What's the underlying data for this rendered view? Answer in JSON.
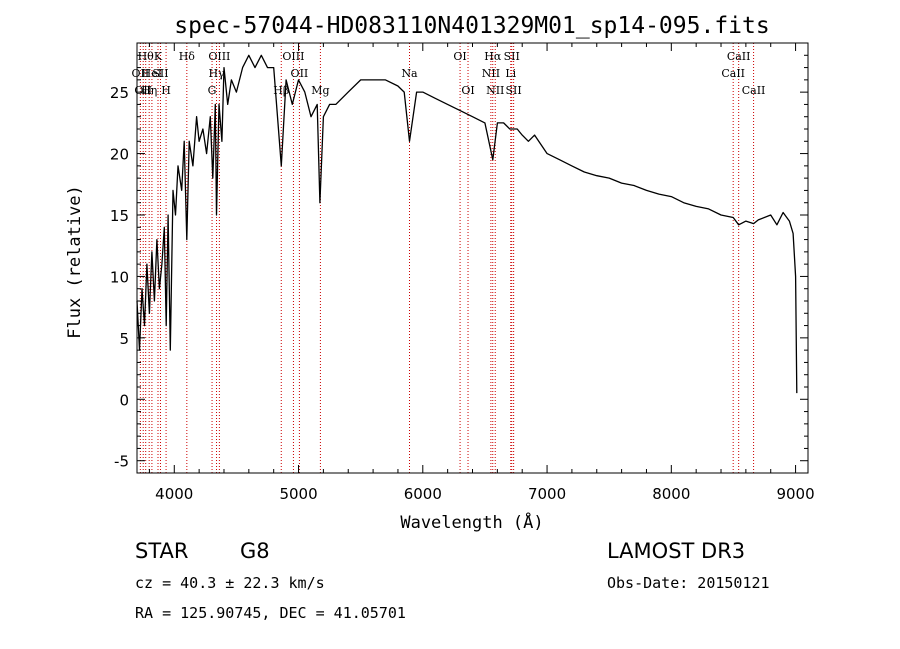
{
  "chart_data": {
    "type": "line",
    "title": "spec-57044-HD083110N401329M01_sp14-095.fits",
    "xlabel": "Wavelength (Å)",
    "ylabel": "Flux (relative)",
    "xlim": [
      3700,
      9100
    ],
    "ylim": [
      -6,
      29
    ],
    "xticks": [
      4000,
      5000,
      6000,
      7000,
      8000,
      9000
    ],
    "yticks": [
      -5,
      0,
      5,
      10,
      15,
      20,
      25
    ],
    "series": [
      {
        "name": "spectrum",
        "x": [
          3700,
          3720,
          3740,
          3760,
          3780,
          3800,
          3820,
          3840,
          3860,
          3880,
          3900,
          3920,
          3935,
          3950,
          3968,
          3990,
          4010,
          4030,
          4060,
          4080,
          4101,
          4120,
          4150,
          4180,
          4200,
          4230,
          4260,
          4290,
          4310,
          4330,
          4340,
          4360,
          4383,
          4400,
          4430,
          4460,
          4500,
          4550,
          4600,
          4650,
          4700,
          4750,
          4800,
          4861,
          4900,
          4950,
          5000,
          5050,
          5100,
          5150,
          5172,
          5200,
          5250,
          5300,
          5400,
          5500,
          5600,
          5700,
          5800,
          5850,
          5893,
          5950,
          6000,
          6100,
          6200,
          6300,
          6400,
          6500,
          6563,
          6600,
          6650,
          6700,
          6760,
          6800,
          6850,
          6900,
          7000,
          7100,
          7200,
          7300,
          7400,
          7500,
          7600,
          7700,
          7800,
          7900,
          8000,
          8100,
          8200,
          8300,
          8400,
          8498,
          8542,
          8600,
          8662,
          8700,
          8800,
          8850,
          8900,
          8950,
          8980,
          9000,
          9010
        ],
        "y": [
          8,
          4,
          9,
          6,
          11,
          7,
          12,
          8,
          13,
          9,
          11,
          14,
          6,
          15,
          4,
          17,
          15,
          19,
          17,
          21,
          13,
          21,
          19,
          23,
          21,
          22,
          20,
          23,
          18,
          24,
          15,
          24,
          21,
          27,
          24,
          26,
          25,
          27,
          28,
          27,
          28,
          27,
          27,
          19,
          26,
          24,
          26,
          25,
          23,
          24,
          16,
          23,
          24,
          24,
          25,
          26,
          26,
          26,
          25.5,
          25,
          21,
          25,
          25,
          24.5,
          24,
          23.5,
          23,
          22.5,
          19.5,
          22.5,
          22.5,
          22,
          22,
          21.5,
          21,
          21.5,
          20,
          19.5,
          19,
          18.5,
          18.2,
          18,
          17.6,
          17.4,
          17,
          16.7,
          16.5,
          16,
          15.7,
          15.5,
          15,
          14.8,
          14.2,
          14.5,
          14.3,
          14.6,
          15,
          14.2,
          15.2,
          14.5,
          13.5,
          10,
          0.5
        ]
      }
    ],
    "lines": [
      {
        "wl": 3727,
        "label": "OII",
        "row": 1
      },
      {
        "wl": 3750,
        "label": "OII",
        "row": 2
      },
      {
        "wl": 3770,
        "label": "Hθ",
        "row": 0
      },
      {
        "wl": 3798,
        "label": "Hη",
        "row": 2
      },
      {
        "wl": 3820,
        "label": "HeI",
        "row": 1
      },
      {
        "wl": 3869,
        "label": "K",
        "row": 0
      },
      {
        "wl": 3889,
        "label": "SII",
        "row": 1
      },
      {
        "wl": 3934,
        "label": "H",
        "row": 2
      },
      {
        "wl": 4101,
        "label": "Hδ",
        "row": 0
      },
      {
        "wl": 4304,
        "label": "G",
        "row": 2
      },
      {
        "wl": 4340,
        "label": "Hγ",
        "row": 1
      },
      {
        "wl": 4363,
        "label": "OIII",
        "row": 0
      },
      {
        "wl": 4861,
        "label": "Hβ",
        "row": 2
      },
      {
        "wl": 4959,
        "label": "OIII",
        "row": 0
      },
      {
        "wl": 5007,
        "label": "OII",
        "row": 1
      },
      {
        "wl": 5176,
        "label": "Mg",
        "row": 2
      },
      {
        "wl": 5893,
        "label": "Na",
        "row": 1
      },
      {
        "wl": 6300,
        "label": "OI",
        "row": 0
      },
      {
        "wl": 6364,
        "label": "OI",
        "row": 2
      },
      {
        "wl": 6548,
        "label": "NII",
        "row": 1
      },
      {
        "wl": 6563,
        "label": "Hα",
        "row": 0
      },
      {
        "wl": 6583,
        "label": "NII",
        "row": 2
      },
      {
        "wl": 6708,
        "label": "Li",
        "row": 1
      },
      {
        "wl": 6716,
        "label": "SII",
        "row": 0
      },
      {
        "wl": 6731,
        "label": "SII",
        "row": 2
      },
      {
        "wl": 8498,
        "label": "CaII",
        "row": 1
      },
      {
        "wl": 8542,
        "label": "CaII",
        "row": 0
      },
      {
        "wl": 8662,
        "label": "CaII",
        "row": 2
      }
    ]
  },
  "info": {
    "object_class": "STAR",
    "subclass": "G8",
    "survey": "LAMOST DR3",
    "velocity": "cz = 40.3 ± 22.3 km/s",
    "obs_date": "Obs-Date: 20150121",
    "coords": "RA = 125.90745, DEC =  41.05701"
  },
  "colors": {
    "spectrum": "#000000",
    "line_marker": "#cc0000",
    "axis": "#000000"
  }
}
